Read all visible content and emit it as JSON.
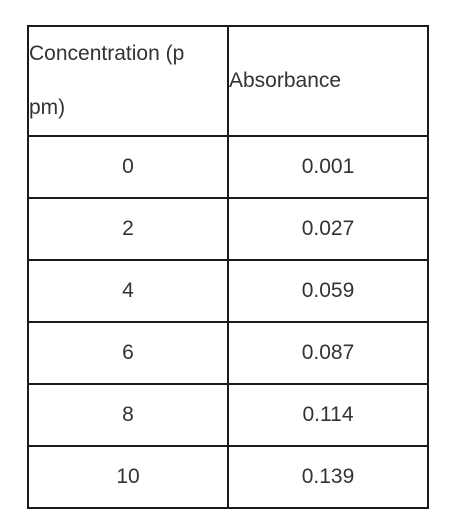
{
  "table": {
    "headers": {
      "concentration_line1": "Concentration (p",
      "concentration_line2": "pm)",
      "absorbance": "Absorbance"
    },
    "rows": [
      {
        "concentration": "0",
        "absorbance": "0.001"
      },
      {
        "concentration": "2",
        "absorbance": "0.027"
      },
      {
        "concentration": "4",
        "absorbance": "0.059"
      },
      {
        "concentration": "6",
        "absorbance": "0.087"
      },
      {
        "concentration": "8",
        "absorbance": "0.114"
      },
      {
        "concentration": "10",
        "absorbance": "0.139"
      }
    ]
  }
}
